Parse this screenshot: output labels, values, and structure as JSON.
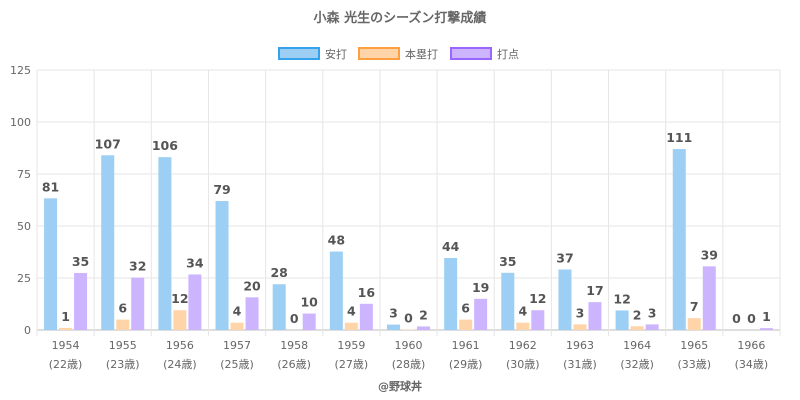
{
  "chart_data": {
    "type": "bar",
    "title": "小森 光生のシーズン打撃成績",
    "categories": [
      "1954",
      "1955",
      "1956",
      "1957",
      "1958",
      "1959",
      "1960",
      "1961",
      "1962",
      "1963",
      "1964",
      "1965",
      "1966"
    ],
    "category_sublabels": [
      "(22歳)",
      "(23歳)",
      "(24歳)",
      "(25歳)",
      "(26歳)",
      "(27歳)",
      "(28歳)",
      "(29歳)",
      "(30歳)",
      "(31歳)",
      "(32歳)",
      "(33歳)",
      "(34歳)"
    ],
    "series": [
      {
        "name": "安打",
        "values": [
          81,
          107,
          106,
          79,
          28,
          48,
          3,
          44,
          35,
          37,
          12,
          111,
          0
        ],
        "color": "#9ccff3",
        "border": "#36a2eb"
      },
      {
        "name": "本塁打",
        "values": [
          1,
          6,
          12,
          4,
          0,
          4,
          0,
          6,
          4,
          3,
          2,
          7,
          0
        ],
        "color": "#ffd4a8",
        "border": "#ff9f40"
      },
      {
        "name": "打点",
        "values": [
          35,
          32,
          34,
          20,
          10,
          16,
          2,
          19,
          12,
          17,
          3,
          39,
          1
        ],
        "color": "#cdb4ff",
        "border": "#9966ff"
      }
    ],
    "plotted_values": [
      [
        63.3,
        84.0,
        83.1,
        62.0,
        22.0,
        37.7,
        2.6,
        34.6,
        27.5,
        29.1,
        9.4,
        87.0,
        0
      ],
      [
        1.0,
        5.0,
        9.5,
        3.5,
        0,
        3.5,
        0.2,
        5.0,
        3.5,
        2.7,
        1.8,
        5.7,
        0
      ],
      [
        27.4,
        25.2,
        26.7,
        15.7,
        7.9,
        12.6,
        1.7,
        15.0,
        9.5,
        13.4,
        2.7,
        30.6,
        0.9
      ]
    ],
    "ylim": [
      0,
      125
    ],
    "yticks": [
      0,
      25,
      50,
      75,
      100,
      125
    ],
    "grid": true,
    "legend_position": "top"
  },
  "credit": "@野球丼"
}
